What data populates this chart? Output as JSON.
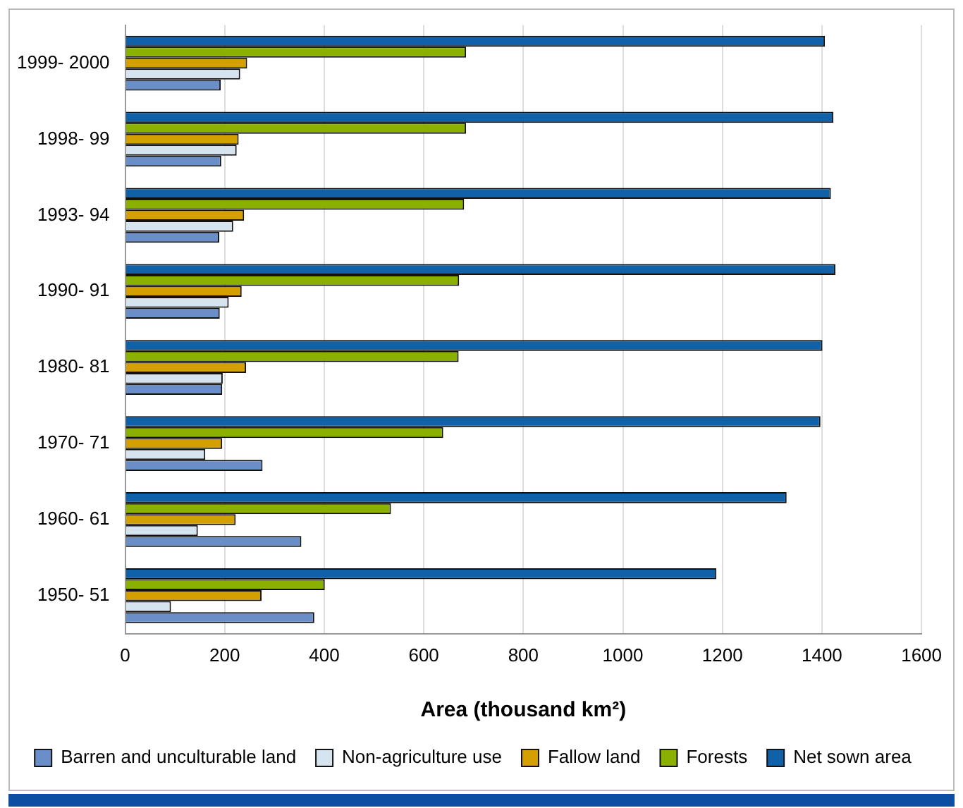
{
  "chart_data": {
    "type": "bar",
    "orientation": "horizontal",
    "xlabel": "Area (thousand km²)",
    "categories": [
      "1999- 2000",
      "1998- 99",
      "1993- 94",
      "1990- 91",
      "1980- 81",
      "1970- 71",
      "1960- 61",
      "1950- 51"
    ],
    "series": [
      {
        "name": "Net sown area",
        "color": "#1061a8",
        "values": [
          1406,
          1423,
          1418,
          1427,
          1401,
          1397,
          1329,
          1188
        ]
      },
      {
        "name": "Forests",
        "color": "#8ab000",
        "values": [
          685,
          685,
          681,
          671,
          670,
          639,
          534,
          401
        ]
      },
      {
        "name": "Fallow land",
        "color": "#d4a000",
        "values": [
          245,
          228,
          239,
          234,
          243,
          195,
          222,
          274
        ]
      },
      {
        "name": "Non-agriculture use",
        "color": "#d6e4ef",
        "values": [
          231,
          224,
          217,
          208,
          196,
          161,
          146,
          92
        ]
      },
      {
        "name": "Barren and unculturable land",
        "color": "#6a8fc8",
        "values": [
          192,
          193,
          189,
          190,
          195,
          276,
          354,
          380
        ]
      }
    ],
    "xlim": [
      0,
      1600
    ],
    "xticks": [
      0,
      200,
      400,
      600,
      800,
      1000,
      1200,
      1400,
      1600
    ],
    "grid": "x",
    "legend": "bottom"
  }
}
